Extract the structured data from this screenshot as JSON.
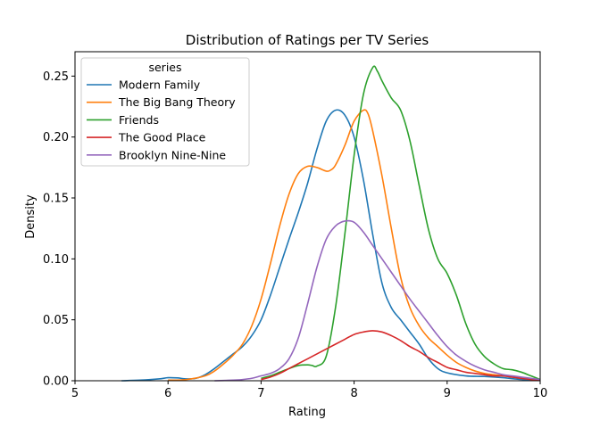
{
  "chart_data": {
    "type": "line",
    "title": "Distribution of Ratings per TV Series",
    "xlabel": "Rating",
    "ylabel": "Density",
    "xlim": [
      5,
      10
    ],
    "ylim": [
      0,
      0.27
    ],
    "x_ticks": [
      "5",
      "6",
      "7",
      "8",
      "9",
      "10"
    ],
    "y_ticks": [
      "0.00",
      "0.05",
      "0.10",
      "0.15",
      "0.20",
      "0.25"
    ],
    "x_tick_values": [
      5,
      6,
      7,
      8,
      9,
      10
    ],
    "y_tick_values": [
      0,
      0.05,
      0.1,
      0.15,
      0.2,
      0.25
    ],
    "grid": false,
    "legend_title": "series",
    "legend_position": "upper-left",
    "series": [
      {
        "name": "Modern Family",
        "color": "#1f77b4",
        "points": [
          [
            5.5,
            0.0
          ],
          [
            5.7,
            0.0005
          ],
          [
            5.9,
            0.0015
          ],
          [
            6.0,
            0.0025
          ],
          [
            6.1,
            0.0023
          ],
          [
            6.2,
            0.0015
          ],
          [
            6.3,
            0.002
          ],
          [
            6.4,
            0.005
          ],
          [
            6.5,
            0.01
          ],
          [
            6.6,
            0.016
          ],
          [
            6.7,
            0.022
          ],
          [
            6.8,
            0.028
          ],
          [
            6.9,
            0.037
          ],
          [
            7.0,
            0.05
          ],
          [
            7.1,
            0.07
          ],
          [
            7.2,
            0.093
          ],
          [
            7.3,
            0.116
          ],
          [
            7.4,
            0.138
          ],
          [
            7.5,
            0.162
          ],
          [
            7.6,
            0.19
          ],
          [
            7.7,
            0.213
          ],
          [
            7.8,
            0.222
          ],
          [
            7.9,
            0.218
          ],
          [
            8.0,
            0.2
          ],
          [
            8.1,
            0.165
          ],
          [
            8.2,
            0.12
          ],
          [
            8.3,
            0.08
          ],
          [
            8.4,
            0.06
          ],
          [
            8.5,
            0.05
          ],
          [
            8.6,
            0.04
          ],
          [
            8.7,
            0.03
          ],
          [
            8.8,
            0.018
          ],
          [
            8.9,
            0.01
          ],
          [
            9.0,
            0.0065
          ],
          [
            9.2,
            0.004
          ],
          [
            9.4,
            0.0035
          ],
          [
            9.6,
            0.0025
          ],
          [
            9.8,
            0.001
          ],
          [
            10.0,
            0.0003
          ]
        ]
      },
      {
        "name": "The Big Bang Theory",
        "color": "#ff7f0e",
        "points": [
          [
            6.0,
            0.0005
          ],
          [
            6.2,
            0.001
          ],
          [
            6.4,
            0.004
          ],
          [
            6.5,
            0.008
          ],
          [
            6.6,
            0.014
          ],
          [
            6.7,
            0.021
          ],
          [
            6.8,
            0.03
          ],
          [
            6.9,
            0.045
          ],
          [
            7.0,
            0.067
          ],
          [
            7.1,
            0.096
          ],
          [
            7.2,
            0.127
          ],
          [
            7.3,
            0.153
          ],
          [
            7.4,
            0.17
          ],
          [
            7.5,
            0.176
          ],
          [
            7.6,
            0.175
          ],
          [
            7.7,
            0.172
          ],
          [
            7.75,
            0.173
          ],
          [
            7.8,
            0.177
          ],
          [
            7.9,
            0.193
          ],
          [
            8.0,
            0.213
          ],
          [
            8.1,
            0.222
          ],
          [
            8.15,
            0.219
          ],
          [
            8.2,
            0.205
          ],
          [
            8.3,
            0.168
          ],
          [
            8.4,
            0.125
          ],
          [
            8.5,
            0.085
          ],
          [
            8.6,
            0.06
          ],
          [
            8.7,
            0.045
          ],
          [
            8.8,
            0.035
          ],
          [
            8.9,
            0.028
          ],
          [
            9.0,
            0.021
          ],
          [
            9.1,
            0.015
          ],
          [
            9.2,
            0.011
          ],
          [
            9.3,
            0.008
          ],
          [
            9.4,
            0.006
          ],
          [
            9.5,
            0.005
          ],
          [
            9.6,
            0.004
          ],
          [
            9.7,
            0.003
          ],
          [
            9.8,
            0.002
          ],
          [
            10.0,
            0.0005
          ]
        ]
      },
      {
        "name": "Friends",
        "color": "#2ca02c",
        "points": [
          [
            7.0,
            0.002
          ],
          [
            7.1,
            0.004
          ],
          [
            7.2,
            0.007
          ],
          [
            7.3,
            0.01
          ],
          [
            7.4,
            0.0125
          ],
          [
            7.5,
            0.013
          ],
          [
            7.55,
            0.0125
          ],
          [
            7.6,
            0.012
          ],
          [
            7.7,
            0.02
          ],
          [
            7.8,
            0.06
          ],
          [
            7.9,
            0.12
          ],
          [
            8.0,
            0.185
          ],
          [
            8.1,
            0.235
          ],
          [
            8.2,
            0.257
          ],
          [
            8.25,
            0.254
          ],
          [
            8.3,
            0.246
          ],
          [
            8.4,
            0.232
          ],
          [
            8.5,
            0.222
          ],
          [
            8.6,
            0.197
          ],
          [
            8.7,
            0.16
          ],
          [
            8.8,
            0.124
          ],
          [
            8.9,
            0.1
          ],
          [
            9.0,
            0.088
          ],
          [
            9.1,
            0.07
          ],
          [
            9.2,
            0.047
          ],
          [
            9.3,
            0.03
          ],
          [
            9.4,
            0.02
          ],
          [
            9.5,
            0.014
          ],
          [
            9.6,
            0.01
          ],
          [
            9.7,
            0.009
          ],
          [
            9.8,
            0.007
          ],
          [
            9.9,
            0.004
          ],
          [
            10.0,
            0.001
          ]
        ]
      },
      {
        "name": "The Good Place",
        "color": "#d62728",
        "points": [
          [
            7.0,
            0.001
          ],
          [
            7.1,
            0.003
          ],
          [
            7.2,
            0.006
          ],
          [
            7.3,
            0.01
          ],
          [
            7.4,
            0.014
          ],
          [
            7.5,
            0.018
          ],
          [
            7.6,
            0.022
          ],
          [
            7.7,
            0.026
          ],
          [
            7.8,
            0.03
          ],
          [
            7.9,
            0.034
          ],
          [
            8.0,
            0.038
          ],
          [
            8.1,
            0.04
          ],
          [
            8.2,
            0.041
          ],
          [
            8.3,
            0.04
          ],
          [
            8.4,
            0.037
          ],
          [
            8.5,
            0.033
          ],
          [
            8.6,
            0.028
          ],
          [
            8.7,
            0.024
          ],
          [
            8.8,
            0.019
          ],
          [
            8.9,
            0.015
          ],
          [
            9.0,
            0.011
          ],
          [
            9.1,
            0.009
          ],
          [
            9.2,
            0.007
          ],
          [
            9.3,
            0.006
          ],
          [
            9.4,
            0.005
          ],
          [
            9.5,
            0.004
          ],
          [
            9.6,
            0.004
          ],
          [
            9.7,
            0.003
          ],
          [
            9.8,
            0.002
          ],
          [
            9.9,
            0.001
          ],
          [
            10.0,
            0.0005
          ]
        ]
      },
      {
        "name": "Brooklyn Nine-Nine",
        "color": "#9467bd",
        "points": [
          [
            6.5,
            0.0
          ],
          [
            6.7,
            0.0005
          ],
          [
            6.8,
            0.001
          ],
          [
            6.9,
            0.002
          ],
          [
            7.0,
            0.004
          ],
          [
            7.1,
            0.006
          ],
          [
            7.2,
            0.01
          ],
          [
            7.3,
            0.018
          ],
          [
            7.4,
            0.035
          ],
          [
            7.5,
            0.063
          ],
          [
            7.6,
            0.093
          ],
          [
            7.7,
            0.116
          ],
          [
            7.8,
            0.127
          ],
          [
            7.9,
            0.131
          ],
          [
            8.0,
            0.13
          ],
          [
            8.1,
            0.122
          ],
          [
            8.2,
            0.111
          ],
          [
            8.3,
            0.1
          ],
          [
            8.4,
            0.089
          ],
          [
            8.5,
            0.078
          ],
          [
            8.6,
            0.067
          ],
          [
            8.7,
            0.057
          ],
          [
            8.8,
            0.047
          ],
          [
            8.9,
            0.037
          ],
          [
            9.0,
            0.028
          ],
          [
            9.1,
            0.021
          ],
          [
            9.2,
            0.016
          ],
          [
            9.3,
            0.012
          ],
          [
            9.4,
            0.009
          ],
          [
            9.5,
            0.007
          ],
          [
            9.6,
            0.005
          ],
          [
            9.7,
            0.004
          ],
          [
            9.8,
            0.003
          ],
          [
            9.9,
            0.002
          ],
          [
            10.0,
            0.001
          ]
        ]
      }
    ]
  }
}
